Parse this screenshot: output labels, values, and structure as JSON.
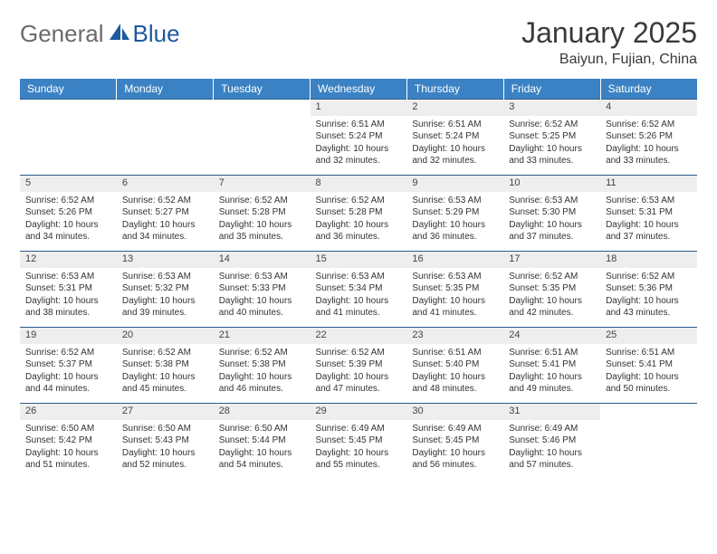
{
  "logo": {
    "text1": "General",
    "text2": "Blue"
  },
  "title": "January 2025",
  "location": "Baiyun, Fujian, China",
  "colors": {
    "header_bg": "#3b82c4",
    "header_text": "#ffffff",
    "daynum_bg": "#eeeeee",
    "border": "#2a5c8a",
    "logo_gray": "#6b6b6b",
    "logo_blue": "#1e5a9e"
  },
  "weekdays": [
    "Sunday",
    "Monday",
    "Tuesday",
    "Wednesday",
    "Thursday",
    "Friday",
    "Saturday"
  ],
  "weeks": [
    [
      null,
      null,
      null,
      {
        "n": "1",
        "sr": "6:51 AM",
        "ss": "5:24 PM",
        "dl": "10 hours and 32 minutes."
      },
      {
        "n": "2",
        "sr": "6:51 AM",
        "ss": "5:24 PM",
        "dl": "10 hours and 32 minutes."
      },
      {
        "n": "3",
        "sr": "6:52 AM",
        "ss": "5:25 PM",
        "dl": "10 hours and 33 minutes."
      },
      {
        "n": "4",
        "sr": "6:52 AM",
        "ss": "5:26 PM",
        "dl": "10 hours and 33 minutes."
      }
    ],
    [
      {
        "n": "5",
        "sr": "6:52 AM",
        "ss": "5:26 PM",
        "dl": "10 hours and 34 minutes."
      },
      {
        "n": "6",
        "sr": "6:52 AM",
        "ss": "5:27 PM",
        "dl": "10 hours and 34 minutes."
      },
      {
        "n": "7",
        "sr": "6:52 AM",
        "ss": "5:28 PM",
        "dl": "10 hours and 35 minutes."
      },
      {
        "n": "8",
        "sr": "6:52 AM",
        "ss": "5:28 PM",
        "dl": "10 hours and 36 minutes."
      },
      {
        "n": "9",
        "sr": "6:53 AM",
        "ss": "5:29 PM",
        "dl": "10 hours and 36 minutes."
      },
      {
        "n": "10",
        "sr": "6:53 AM",
        "ss": "5:30 PM",
        "dl": "10 hours and 37 minutes."
      },
      {
        "n": "11",
        "sr": "6:53 AM",
        "ss": "5:31 PM",
        "dl": "10 hours and 37 minutes."
      }
    ],
    [
      {
        "n": "12",
        "sr": "6:53 AM",
        "ss": "5:31 PM",
        "dl": "10 hours and 38 minutes."
      },
      {
        "n": "13",
        "sr": "6:53 AM",
        "ss": "5:32 PM",
        "dl": "10 hours and 39 minutes."
      },
      {
        "n": "14",
        "sr": "6:53 AM",
        "ss": "5:33 PM",
        "dl": "10 hours and 40 minutes."
      },
      {
        "n": "15",
        "sr": "6:53 AM",
        "ss": "5:34 PM",
        "dl": "10 hours and 41 minutes."
      },
      {
        "n": "16",
        "sr": "6:53 AM",
        "ss": "5:35 PM",
        "dl": "10 hours and 41 minutes."
      },
      {
        "n": "17",
        "sr": "6:52 AM",
        "ss": "5:35 PM",
        "dl": "10 hours and 42 minutes."
      },
      {
        "n": "18",
        "sr": "6:52 AM",
        "ss": "5:36 PM",
        "dl": "10 hours and 43 minutes."
      }
    ],
    [
      {
        "n": "19",
        "sr": "6:52 AM",
        "ss": "5:37 PM",
        "dl": "10 hours and 44 minutes."
      },
      {
        "n": "20",
        "sr": "6:52 AM",
        "ss": "5:38 PM",
        "dl": "10 hours and 45 minutes."
      },
      {
        "n": "21",
        "sr": "6:52 AM",
        "ss": "5:38 PM",
        "dl": "10 hours and 46 minutes."
      },
      {
        "n": "22",
        "sr": "6:52 AM",
        "ss": "5:39 PM",
        "dl": "10 hours and 47 minutes."
      },
      {
        "n": "23",
        "sr": "6:51 AM",
        "ss": "5:40 PM",
        "dl": "10 hours and 48 minutes."
      },
      {
        "n": "24",
        "sr": "6:51 AM",
        "ss": "5:41 PM",
        "dl": "10 hours and 49 minutes."
      },
      {
        "n": "25",
        "sr": "6:51 AM",
        "ss": "5:41 PM",
        "dl": "10 hours and 50 minutes."
      }
    ],
    [
      {
        "n": "26",
        "sr": "6:50 AM",
        "ss": "5:42 PM",
        "dl": "10 hours and 51 minutes."
      },
      {
        "n": "27",
        "sr": "6:50 AM",
        "ss": "5:43 PM",
        "dl": "10 hours and 52 minutes."
      },
      {
        "n": "28",
        "sr": "6:50 AM",
        "ss": "5:44 PM",
        "dl": "10 hours and 54 minutes."
      },
      {
        "n": "29",
        "sr": "6:49 AM",
        "ss": "5:45 PM",
        "dl": "10 hours and 55 minutes."
      },
      {
        "n": "30",
        "sr": "6:49 AM",
        "ss": "5:45 PM",
        "dl": "10 hours and 56 minutes."
      },
      {
        "n": "31",
        "sr": "6:49 AM",
        "ss": "5:46 PM",
        "dl": "10 hours and 57 minutes."
      },
      null
    ]
  ],
  "labels": {
    "sunrise": "Sunrise:",
    "sunset": "Sunset:",
    "daylight": "Daylight:"
  }
}
